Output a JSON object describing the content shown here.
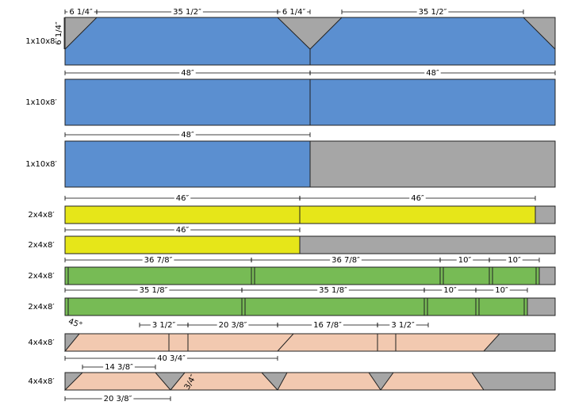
{
  "boards": [
    {
      "label": "1x10x8′",
      "dims": [
        "6 1/4″",
        "35 1/2″",
        "6 1/4″",
        "6 1/4″",
        "35 1/2″"
      ]
    },
    {
      "label": "1x10x8′",
      "dims": [
        "48″",
        "48″"
      ]
    },
    {
      "label": "1x10x8′",
      "dims": [
        "48″"
      ]
    },
    {
      "label": "2x4x8′",
      "dims": [
        "46″",
        "46″"
      ]
    },
    {
      "label": "2x4x8′",
      "dims": [
        "46″"
      ]
    },
    {
      "label": "2x4x8′",
      "dims": [
        "36 7/8″",
        "36 7/8″",
        "10″",
        "10″"
      ]
    },
    {
      "label": "2x4x8′",
      "dims": [
        "35 1/8″",
        "35 1/8″",
        "10″",
        "10″"
      ]
    },
    {
      "label": "4x4x8′",
      "dims": [
        "45°",
        "3 1/2″",
        "20 3/8″",
        "16 7/8″",
        "3 1/2″",
        "40 3/4″"
      ]
    },
    {
      "label": "4x4x8′",
      "dims": [
        "14 3/8″",
        "3/4″",
        "20 3/8″"
      ]
    }
  ]
}
